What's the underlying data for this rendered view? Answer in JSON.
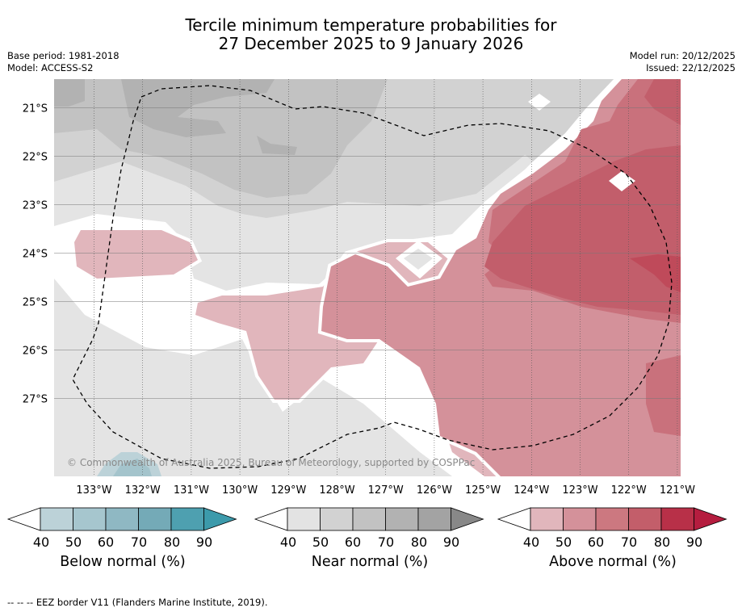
{
  "title": {
    "line1": "Tercile minimum temperature probabilities for",
    "line2": "27 December 2025 to 9 January 2026"
  },
  "meta": {
    "base_period": "Base period: 1981-2018",
    "model": "Model: ACCESS-S2",
    "model_run": "Model run: 20/12/2025",
    "issued": "Issued: 22/12/2025"
  },
  "map": {
    "latitudes": [
      "21°S",
      "22°S",
      "23°S",
      "24°S",
      "25°S",
      "26°S",
      "27°S"
    ],
    "longitudes": [
      "133°W",
      "132°W",
      "131°W",
      "130°W",
      "129°W",
      "128°W",
      "127°W",
      "126°W",
      "125°W",
      "124°W",
      "123°W",
      "122°W",
      "121°W"
    ],
    "copyright": "© Commonwealth of Australia 2025, Bureau of Meteorology, supported by COSPPac",
    "colors": {
      "near_40": "#e4e4e4",
      "near_50": "#d2d2d2",
      "near_60": "#c2c2c2",
      "near_70": "#b2b2b2",
      "near_80": "#a4a4a4",
      "above_40": "#e1b6bc",
      "above_50": "#d4919a",
      "above_60": "#c9717c",
      "above_70": "#c25e6b",
      "below_40": "#bcd2d8",
      "below_50": "#a4c4cc"
    }
  },
  "colorbars": [
    {
      "label": "Below normal (%)",
      "ticks": [
        "40",
        "50",
        "60",
        "70",
        "80",
        "90"
      ],
      "colors": [
        "#bcd2d8",
        "#a6c6ce",
        "#8fb8c3",
        "#74aab7",
        "#4ea0b0",
        "#3c9aab"
      ]
    },
    {
      "label": "Near normal (%)",
      "ticks": [
        "40",
        "50",
        "60",
        "70",
        "80",
        "90"
      ],
      "colors": [
        "#e3e3e3",
        "#d2d2d2",
        "#c2c2c2",
        "#b2b2b2",
        "#a3a3a3",
        "#888888"
      ]
    },
    {
      "label": "Above normal (%)",
      "ticks": [
        "40",
        "50",
        "60",
        "70",
        "80",
        "90"
      ],
      "colors": [
        "#e1b6bc",
        "#d4919a",
        "#cc7880",
        "#c35e6a",
        "#b83048",
        "#b51d3f"
      ]
    }
  ],
  "footnote": "-- -- -- EEZ border V11 (Flanders Marine Institute, 2019)."
}
